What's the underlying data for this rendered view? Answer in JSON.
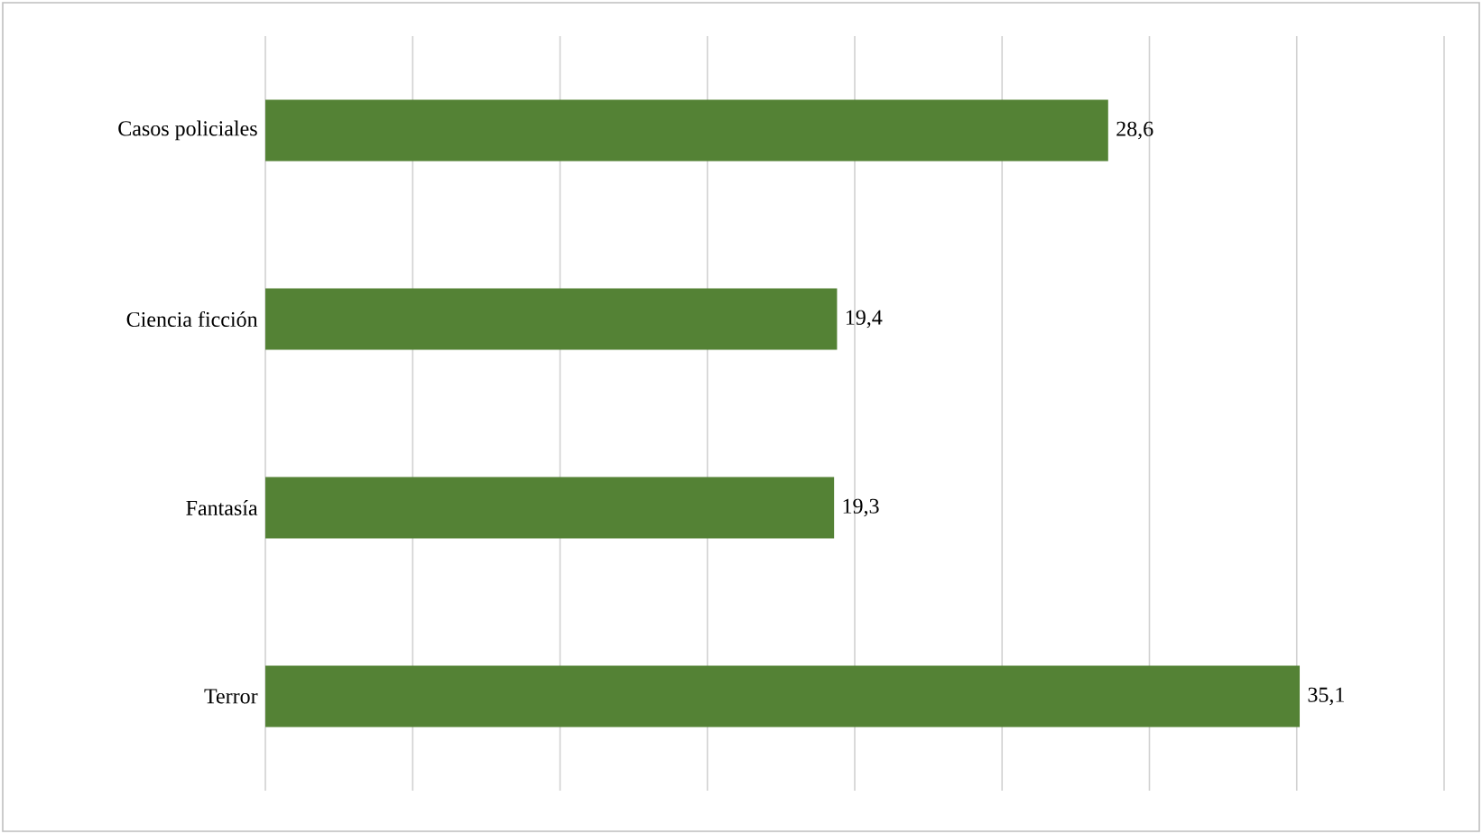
{
  "chart_data": {
    "type": "bar",
    "orientation": "horizontal",
    "categories": [
      "Casos policiales",
      "Ciencia ficción",
      "Fantasía",
      "Terror"
    ],
    "values": [
      28.6,
      19.4,
      19.3,
      35.1
    ],
    "value_labels": [
      "28,6",
      "19,4",
      "19,3",
      "35,1"
    ],
    "color": "#548235",
    "xlim": [
      0,
      40
    ],
    "xticks": [
      {
        "value": 0,
        "label": null
      },
      {
        "value": 5,
        "label": null
      },
      {
        "value": 10,
        "label": null
      },
      {
        "value": 15,
        "label": null
      },
      {
        "value": 20,
        "label": null
      },
      {
        "value": 25,
        "label": null
      },
      {
        "value": 30,
        "label": null
      },
      {
        "value": 35,
        "label": null
      },
      {
        "value": 40,
        "label": null
      }
    ],
    "tick_labels": "y",
    "grid": "x"
  }
}
